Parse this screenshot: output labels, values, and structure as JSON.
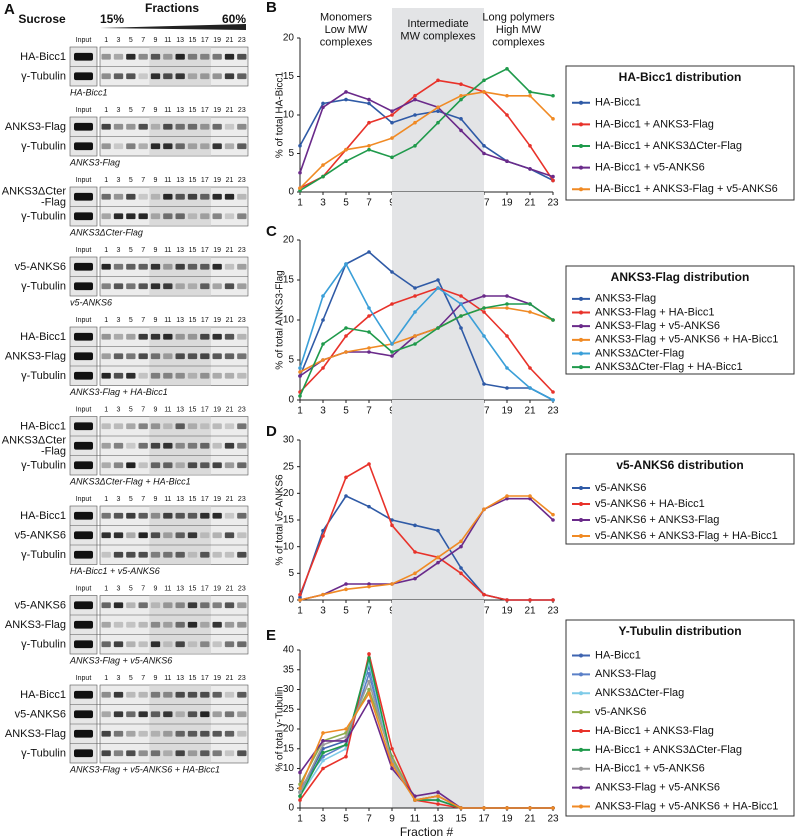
{
  "panel_a": {
    "letter": "A",
    "sucrose": "Sucrose",
    "low": "15%",
    "fractions": "Fractions",
    "high": "60%",
    "input": "Input",
    "lanes": [
      1,
      3,
      5,
      7,
      9,
      11,
      13,
      15,
      17,
      19,
      21,
      23
    ],
    "blots": [
      {
        "rows": [
          [
            "HA-Bicc1"
          ],
          [
            "γ-Tubulin"
          ]
        ],
        "caption": "HA-Bicc1"
      },
      {
        "rows": [
          [
            "ANKS3-Flag"
          ],
          [
            "γ-Tubulin"
          ]
        ],
        "caption": "ANKS3-Flag"
      },
      {
        "rows": [
          [
            "ANKS3ΔCter",
            "-Flag"
          ],
          [
            "γ-Tubulin"
          ]
        ],
        "caption": "ANKS3ΔCter-Flag"
      },
      {
        "rows": [
          [
            "v5-ANKS6"
          ],
          [
            "γ-Tubulin"
          ]
        ],
        "caption": "v5-ANKS6"
      },
      {
        "rows": [
          [
            "HA-Bicc1"
          ],
          [
            "ANKS3-Flag"
          ],
          [
            "γ-Tubulin"
          ]
        ],
        "caption": "ANKS3-Flag + HA-Bicc1"
      },
      {
        "rows": [
          [
            "HA-Bicc1"
          ],
          [
            "ANKS3ΔCter",
            "-Flag"
          ],
          [
            "γ-Tubulin"
          ]
        ],
        "caption": "ANKS3ΔCter-Flag + HA-Bicc1"
      },
      {
        "rows": [
          [
            "HA-Bicc1"
          ],
          [
            "v5-ANKS6"
          ],
          [
            "γ-Tubulin"
          ]
        ],
        "caption": "HA-Bicc1 + v5-ANKS6"
      },
      {
        "rows": [
          [
            "v5-ANKS6"
          ],
          [
            "ANKS3-Flag"
          ],
          [
            "γ-Tubulin"
          ]
        ],
        "caption": "ANKS3-Flag + v5-ANKS6"
      },
      {
        "rows": [
          [
            "HA-Bicc1"
          ],
          [
            "v5-ANKS6"
          ],
          [
            "ANKS3-Flag"
          ],
          [
            "γ-Tubulin"
          ]
        ],
        "caption": "ANKS3-Flag + v5-ANKS6 + HA-Bicc1"
      }
    ]
  },
  "chart_data": [
    {
      "type": "line",
      "panel": "B",
      "legend_title": "HA-Bicc1 distribution",
      "ylabel": "% of total HA-Bicc1",
      "xlabel": "Fraction #",
      "x": [
        1,
        3,
        5,
        7,
        9,
        11,
        13,
        15,
        17,
        19,
        21,
        23
      ],
      "xlim": [
        1,
        23
      ],
      "xticks": [
        1,
        3,
        5,
        7,
        9,
        11,
        13,
        15,
        17,
        19,
        21,
        23
      ],
      "ylim": [
        0,
        20
      ],
      "yticks": [
        0,
        5,
        10,
        15,
        20
      ],
      "highlight": [
        9,
        17
      ],
      "annotations": [
        [
          "Monomers",
          "Low MW",
          "complexes"
        ],
        [
          "Intermediate",
          "MW complexes"
        ],
        [
          "Long polymers",
          "High MW",
          "complexes"
        ]
      ],
      "series": [
        {
          "name": "HA-Bicc1",
          "color": "#2f5aa6",
          "values": [
            6,
            11.5,
            12,
            11.5,
            9,
            10,
            10.5,
            9.5,
            6,
            4,
            3,
            1.5
          ]
        },
        {
          "name": "HA-Bicc1 + ANKS3-Flag",
          "color": "#e8322a",
          "values": [
            0.5,
            2,
            5.5,
            9,
            10,
            12.5,
            14.5,
            14,
            13,
            10,
            6,
            1.5
          ]
        },
        {
          "name": "HA-Bicc1  + ANKS3ΔCter-Flag",
          "color": "#1f9a4b",
          "values": [
            0.2,
            2,
            4,
            5.5,
            4.5,
            6,
            9,
            12,
            14.5,
            16,
            13,
            12.5
          ]
        },
        {
          "name": "HA-Bicc1 + v5-ANKS6",
          "color": "#6a2a8a",
          "values": [
            2.5,
            11,
            13,
            12,
            10.5,
            12,
            11,
            8,
            5,
            4,
            3,
            2
          ]
        },
        {
          "name": "HA-Bicc1 + ANKS3-Flag + v5-ANKS6",
          "color": "#f08a24",
          "values": [
            0.5,
            3.5,
            5.5,
            6,
            7,
            9,
            11,
            12.5,
            13,
            12.5,
            12.5,
            9.5
          ]
        }
      ]
    },
    {
      "type": "line",
      "panel": "C",
      "legend_title": "ANKS3-Flag distribution",
      "ylabel": "% of total ANKS3-Flag",
      "xlabel": "Fraction #",
      "x": [
        1,
        3,
        5,
        7,
        9,
        11,
        13,
        15,
        17,
        19,
        21,
        23
      ],
      "xlim": [
        1,
        23
      ],
      "xticks": [
        1,
        3,
        5,
        7,
        9,
        11,
        13,
        15,
        17,
        19,
        21,
        23
      ],
      "ylim": [
        0,
        20
      ],
      "yticks": [
        0,
        5,
        10,
        15,
        20
      ],
      "highlight": [
        9,
        17
      ],
      "series": [
        {
          "name": "ANKS3-Flag",
          "color": "#2f5aa6",
          "values": [
            3,
            10,
            17,
            18.5,
            16,
            14,
            15,
            9,
            2,
            1.5,
            1.5,
            0
          ]
        },
        {
          "name": "ANKS3-Flag + HA-Bicc1",
          "color": "#e8322a",
          "values": [
            1,
            4,
            8,
            10.5,
            12,
            13,
            14,
            13,
            11,
            8,
            4,
            1
          ]
        },
        {
          "name": "ANKS3-Flag + v5-ANKS6",
          "color": "#6a2a8a",
          "values": [
            3,
            5,
            6,
            6,
            5.5,
            8,
            9,
            12,
            13,
            13,
            12,
            10
          ]
        },
        {
          "name": "ANKS3-Flag + v5-ANKS6 + HA-Bicc1",
          "color": "#f08a24",
          "values": [
            3.5,
            5,
            6,
            6.5,
            7,
            8,
            9,
            10.5,
            11.5,
            11.5,
            11,
            10
          ]
        },
        {
          "name": "ANKS3ΔCter-Flag",
          "color": "#3a9fd8",
          "values": [
            4,
            13,
            17,
            11.5,
            7,
            11,
            14,
            12,
            8,
            4,
            1.5,
            0
          ]
        },
        {
          "name": "ANKS3ΔCter-Flag + HA-Bicc1",
          "color": "#1f9a4b",
          "values": [
            0.5,
            7,
            9,
            8.5,
            6,
            7,
            9,
            10.5,
            11.5,
            12,
            12,
            10
          ]
        }
      ]
    },
    {
      "type": "line",
      "panel": "D",
      "legend_title": "v5-ANKS6 distribution",
      "ylabel": "% of total v5-ANKS6",
      "xlabel": "Fraction #",
      "x": [
        1,
        3,
        5,
        7,
        9,
        11,
        13,
        15,
        17,
        19,
        21,
        23
      ],
      "xlim": [
        1,
        23
      ],
      "xticks": [
        1,
        3,
        5,
        7,
        9,
        11,
        13,
        15,
        17,
        19,
        21,
        23
      ],
      "ylim": [
        0,
        30
      ],
      "yticks": [
        0,
        5,
        10,
        15,
        20,
        25,
        30
      ],
      "highlight": [
        9,
        17
      ],
      "series": [
        {
          "name": "v5-ANKS6",
          "color": "#2f5aa6",
          "values": [
            0.5,
            13,
            19.5,
            17.5,
            15,
            14,
            13,
            6,
            1,
            0,
            0,
            0
          ]
        },
        {
          "name": "v5-ANKS6 + HA-Bicc1",
          "color": "#e8322a",
          "values": [
            1,
            12,
            23,
            25.5,
            14,
            9,
            8,
            5,
            1,
            0,
            0,
            0
          ]
        },
        {
          "name": "v5-ANKS6 + ANKS3-Flag",
          "color": "#6a2a8a",
          "values": [
            0,
            1,
            3,
            3,
            3,
            4,
            7,
            10,
            17,
            19,
            19,
            15
          ]
        },
        {
          "name": "v5-ANKS6 + ANKS3-Flag + HA-Bicc1",
          "color": "#f08a24",
          "values": [
            0,
            1,
            2,
            2.5,
            3,
            5,
            8,
            11,
            17,
            19.5,
            19.5,
            16
          ]
        }
      ]
    },
    {
      "type": "line",
      "panel": "E",
      "legend_title": "Y-Tubulin distribution",
      "ylabel": "% of total γ-Tubulin",
      "xlabel": "Fraction #",
      "x": [
        1,
        3,
        5,
        7,
        9,
        11,
        13,
        15,
        17,
        19,
        21,
        23
      ],
      "xlim": [
        1,
        23
      ],
      "xticks": [
        1,
        3,
        5,
        7,
        9,
        11,
        13,
        15,
        17,
        19,
        21,
        23
      ],
      "ylim": [
        0,
        40
      ],
      "yticks": [
        0,
        5,
        10,
        15,
        20,
        25,
        30,
        35,
        40
      ],
      "highlight": [
        9,
        17
      ],
      "series": [
        {
          "name": "HA-Bicc1",
          "color": "#3f64b0",
          "values": [
            4,
            15,
            17,
            36,
            12,
            2,
            3,
            0,
            0,
            0,
            0,
            0
          ]
        },
        {
          "name": "ANKS3-Flag",
          "color": "#5b80c8",
          "values": [
            5,
            13,
            16,
            34,
            12,
            2,
            2,
            0,
            0,
            0,
            0,
            0
          ]
        },
        {
          "name": "ANKS3ΔCter-Flag",
          "color": "#7fcbe8",
          "values": [
            3,
            12,
            15,
            37,
            11,
            2,
            2,
            0,
            0,
            0,
            0,
            0
          ]
        },
        {
          "name": "v5-ANKS6",
          "color": "#8fad4a",
          "values": [
            6,
            17,
            19,
            30,
            13,
            2,
            3,
            0,
            0,
            0,
            0,
            0
          ]
        },
        {
          "name": "HA-Bicc1 + ANKS3-Flag",
          "color": "#e8322a",
          "values": [
            2,
            10,
            13,
            39,
            15,
            2,
            1,
            0,
            0,
            0,
            0,
            0
          ]
        },
        {
          "name": "HA-Bicc1 + ANKS3ΔCter-Flag",
          "color": "#1f9a4b",
          "values": [
            3,
            14,
            16,
            38,
            12,
            2,
            2,
            0,
            0,
            0,
            0,
            0
          ]
        },
        {
          "name": "HA-Bicc1 + v5-ANKS6",
          "color": "#9a9a9a",
          "values": [
            4,
            16,
            18,
            32,
            12,
            2,
            3,
            0,
            0,
            0,
            0,
            0
          ]
        },
        {
          "name": "ANKS3-Flag + v5-ANKS6",
          "color": "#6a2a8a",
          "values": [
            9,
            17,
            17,
            27,
            10,
            3,
            4,
            0,
            0,
            0,
            0,
            0
          ]
        },
        {
          "name": "ANKS3-Flag + v5-ANKS6 + HA-Bicc1",
          "color": "#f08a24",
          "values": [
            5,
            19,
            20,
            29,
            11,
            2,
            3,
            0,
            0,
            0,
            0,
            0
          ]
        }
      ]
    }
  ]
}
